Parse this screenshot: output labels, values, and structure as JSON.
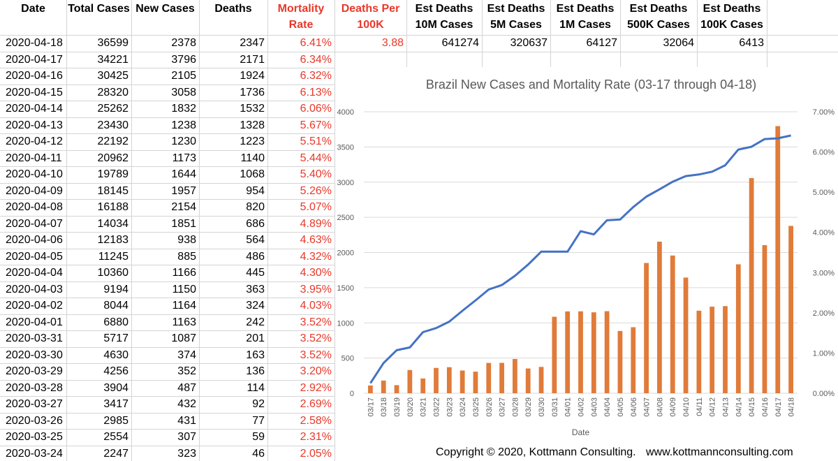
{
  "sheet": {
    "headers": [
      {
        "label": "Date",
        "red": false
      },
      {
        "label": "Total Cases",
        "red": false
      },
      {
        "label": "New Cases",
        "red": false
      },
      {
        "label": "Deaths",
        "red": false
      },
      {
        "label": "Mortality\nRate",
        "red": true
      },
      {
        "label": "Deaths Per\n100K",
        "red": true
      },
      {
        "label": "Est Deaths\n10M Cases",
        "red": false
      },
      {
        "label": "Est Deaths\n5M Cases",
        "red": false
      },
      {
        "label": "Est Deaths\n1M Cases",
        "red": false
      },
      {
        "label": "Est Deaths\n500K Cases",
        "red": false
      },
      {
        "label": "Est Deaths\n100K Cases",
        "red": false
      }
    ],
    "rows": [
      [
        "2020-04-18",
        "36599",
        "2378",
        "2347",
        "6.41%"
      ],
      [
        "2020-04-17",
        "34221",
        "3796",
        "2171",
        "6.34%"
      ],
      [
        "2020-04-16",
        "30425",
        "2105",
        "1924",
        "6.32%"
      ],
      [
        "2020-04-15",
        "28320",
        "3058",
        "1736",
        "6.13%"
      ],
      [
        "2020-04-14",
        "25262",
        "1832",
        "1532",
        "6.06%"
      ],
      [
        "2020-04-13",
        "23430",
        "1238",
        "1328",
        "5.67%"
      ],
      [
        "2020-04-12",
        "22192",
        "1230",
        "1223",
        "5.51%"
      ],
      [
        "2020-04-11",
        "20962",
        "1173",
        "1140",
        "5.44%"
      ],
      [
        "2020-04-10",
        "19789",
        "1644",
        "1068",
        "5.40%"
      ],
      [
        "2020-04-09",
        "18145",
        "1957",
        "954",
        "5.26%"
      ],
      [
        "2020-04-08",
        "16188",
        "2154",
        "820",
        "5.07%"
      ],
      [
        "2020-04-07",
        "14034",
        "1851",
        "686",
        "4.89%"
      ],
      [
        "2020-04-06",
        "12183",
        "938",
        "564",
        "4.63%"
      ],
      [
        "2020-04-05",
        "11245",
        "885",
        "486",
        "4.32%"
      ],
      [
        "2020-04-04",
        "10360",
        "1166",
        "445",
        "4.30%"
      ],
      [
        "2020-04-03",
        "9194",
        "1150",
        "363",
        "3.95%"
      ],
      [
        "2020-04-02",
        "8044",
        "1164",
        "324",
        "4.03%"
      ],
      [
        "2020-04-01",
        "6880",
        "1163",
        "242",
        "3.52%"
      ],
      [
        "2020-03-31",
        "5717",
        "1087",
        "201",
        "3.52%"
      ],
      [
        "2020-03-30",
        "4630",
        "374",
        "163",
        "3.52%"
      ],
      [
        "2020-03-29",
        "4256",
        "352",
        "136",
        "3.20%"
      ],
      [
        "2020-03-28",
        "3904",
        "487",
        "114",
        "2.92%"
      ],
      [
        "2020-03-27",
        "3417",
        "432",
        "92",
        "2.69%"
      ],
      [
        "2020-03-26",
        "2985",
        "431",
        "77",
        "2.58%"
      ],
      [
        "2020-03-25",
        "2554",
        "307",
        "59",
        "2.31%"
      ],
      [
        "2020-03-24",
        "2247",
        "323",
        "46",
        "2.05%"
      ]
    ],
    "estimates": [
      "3.88",
      "641274",
      "320637",
      "64127",
      "32064",
      "6413"
    ]
  },
  "chart_data": {
    "type": "bar+line",
    "title": "Brazil New Cases and Mortality Rate (03-17 through 04-18)",
    "xlabel": "Date",
    "categories": [
      "03/17",
      "03/18",
      "03/19",
      "03/20",
      "03/21",
      "03/22",
      "03/23",
      "03/24",
      "03/25",
      "03/26",
      "03/27",
      "03/28",
      "03/29",
      "03/30",
      "03/31",
      "04/01",
      "04/02",
      "04/03",
      "04/04",
      "04/05",
      "04/06",
      "04/07",
      "04/08",
      "04/09",
      "04/10",
      "04/11",
      "04/12",
      "04/13",
      "04/14",
      "04/15",
      "04/16",
      "04/17",
      "04/18"
    ],
    "bar_series": {
      "values": [
        110,
        180,
        115,
        330,
        210,
        360,
        370,
        323,
        307,
        431,
        432,
        487,
        352,
        374,
        1087,
        1163,
        1164,
        1150,
        1166,
        885,
        938,
        1851,
        2154,
        1957,
        1644,
        1173,
        1230,
        1238,
        1832,
        3058,
        2105,
        3796,
        2378
      ],
      "color": "#e07b39",
      "axis": "left"
    },
    "line_series": {
      "values": [
        0.0025,
        0.0075,
        0.0107,
        0.0114,
        0.0152,
        0.0162,
        0.0178,
        0.0205,
        0.0231,
        0.0258,
        0.0269,
        0.0292,
        0.032,
        0.0352,
        0.0352,
        0.0352,
        0.0403,
        0.0395,
        0.043,
        0.0432,
        0.0463,
        0.0489,
        0.0507,
        0.0526,
        0.054,
        0.0544,
        0.0551,
        0.0567,
        0.0606,
        0.0613,
        0.0632,
        0.0634,
        0.0641
      ],
      "color": "#4472c4",
      "axis": "right"
    },
    "y_left": {
      "range": [
        0,
        4000
      ],
      "ticks": [
        "0",
        "500",
        "1000",
        "1500",
        "2000",
        "2500",
        "3000",
        "3500",
        "4000"
      ]
    },
    "y_right": {
      "range": [
        0,
        0.07
      ],
      "ticks": [
        "0.00%",
        "1.00%",
        "2.00%",
        "3.00%",
        "4.00%",
        "5.00%",
        "6.00%",
        "7.00%"
      ]
    },
    "grid": true,
    "legend": "none"
  },
  "footer": {
    "copyright": "Copyright © 2020, Kottmann Consulting.",
    "website": "www.kottmannconsulting.com"
  }
}
